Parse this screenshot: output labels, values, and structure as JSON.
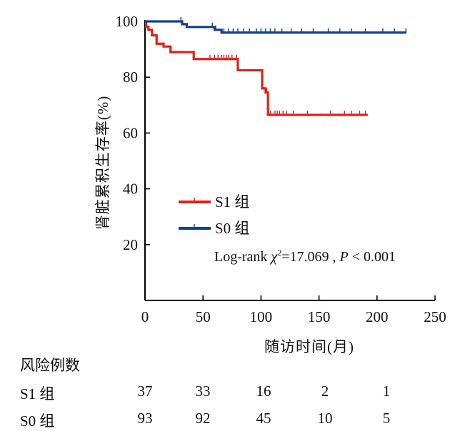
{
  "chart_data": {
    "type": "line",
    "step": true,
    "xlabel": "随访时间(月)",
    "ylabel": "肾脏累积生存率(%)",
    "xlim": [
      0,
      250
    ],
    "ylim": [
      0,
      100
    ],
    "x_ticks": [
      "0",
      "50",
      "100",
      "150",
      "200",
      "250"
    ],
    "y_ticks": [
      "20",
      "40",
      "60",
      "80",
      "100"
    ],
    "grid": false,
    "legend_position": "center",
    "annotation": {
      "prefix": "Log-rank ",
      "chi": "χ",
      "sup": "2",
      "value": "=17.069 ,",
      "p": "P",
      "rest": " < 0.001"
    },
    "series": [
      {
        "name": "S1 组",
        "color": "#e0201a",
        "x": [
          0,
          1,
          3,
          6,
          10,
          16,
          22,
          30,
          35,
          42,
          50,
          56,
          62,
          68,
          80,
          85,
          90,
          97,
          101,
          104,
          106,
          110,
          130,
          160,
          192
        ],
        "y": [
          100,
          98,
          97,
          95,
          92,
          91,
          89,
          89,
          89,
          86.5,
          86.5,
          86.5,
          86.5,
          86.5,
          82.5,
          82.5,
          82.5,
          82.5,
          76,
          74.5,
          66.5,
          66.5,
          66.5,
          66.5,
          66.5
        ]
      },
      {
        "name": "S0 组",
        "color": "#123f92",
        "x": [
          0,
          5,
          10,
          20,
          30,
          32,
          36,
          45,
          55,
          60,
          63,
          66,
          80,
          100,
          150,
          200,
          225
        ],
        "y": [
          100,
          100,
          100,
          100,
          100,
          99,
          98,
          98,
          98,
          97,
          97,
          96,
          96,
          96,
          96,
          96,
          96
        ]
      }
    ],
    "censor_marks": [
      {
        "series": 0,
        "x": [
          56,
          60,
          63,
          66,
          68,
          70,
          72,
          75,
          79,
          105,
          108,
          112,
          114,
          116,
          119,
          122,
          128,
          140,
          160,
          172,
          178,
          185,
          190
        ]
      },
      {
        "series": 1,
        "x": [
          31,
          58,
          61,
          68,
          72,
          76,
          80,
          85,
          90,
          96,
          100,
          104,
          108,
          112,
          118,
          126,
          135,
          145,
          158,
          168,
          178,
          190,
          205,
          215,
          225
        ]
      }
    ]
  },
  "risk_table": {
    "title": "风险例数",
    "rows": [
      {
        "label": "S1 组",
        "values": [
          "37",
          "33",
          "16",
          "2",
          "1"
        ]
      },
      {
        "label": "S0 组",
        "values": [
          "93",
          "92",
          "45",
          "10",
          "5"
        ]
      }
    ]
  }
}
